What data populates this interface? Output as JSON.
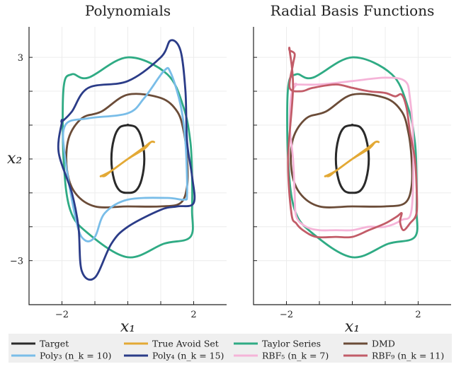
{
  "chart_data": [
    {
      "type": "line",
      "title": "Polynomials",
      "xlabel": "x₁",
      "ylabel": "x₂",
      "xlim": [
        -3,
        3
      ],
      "ylim": [
        -4.3,
        3.9
      ],
      "xticks": [
        -2,
        2
      ],
      "yticks": [
        3,
        -3
      ],
      "grid": true,
      "series": [
        {
          "name": "Target",
          "key": "target",
          "x": [
            0,
            0.25,
            0.42,
            0.5,
            0.42,
            0.25,
            0,
            -0.25,
            -0.42,
            -0.5,
            -0.42,
            -0.25,
            0
          ],
          "y": [
            1,
            0.93,
            0.6,
            0,
            -0.6,
            -0.93,
            -1,
            -0.93,
            -0.6,
            0,
            0.6,
            0.93,
            1
          ]
        },
        {
          "name": "True Avoid Set",
          "key": "avoid",
          "x": [
            -0.8,
            -0.5,
            0,
            0.5,
            0.7,
            0.8,
            0.7,
            0.5,
            0,
            -0.5,
            -0.7,
            -0.8
          ],
          "y": [
            -0.5,
            -0.35,
            0,
            0.3,
            0.5,
            0.5,
            0.5,
            0.35,
            0,
            -0.35,
            -0.5,
            -0.5
          ]
        },
        {
          "name": "Taylor Series",
          "key": "taylor",
          "x": [
            -1.2,
            0,
            1.2,
            1.7,
            1.9,
            1.95,
            1.95,
            1.9,
            1.1,
            0,
            -1.2,
            -1.75,
            -1.95,
            -1.95,
            -1.7
          ],
          "y": [
            2.4,
            3.0,
            2.5,
            1.5,
            0.5,
            -0.5,
            -1.5,
            -2.3,
            -2.5,
            -2.9,
            -2.2,
            -1.5,
            0,
            2.1,
            2.5
          ]
        },
        {
          "name": "DMD",
          "key": "dmd",
          "x": [
            -0.8,
            0,
            1,
            1.5,
            1.7,
            1.8,
            1.8,
            1.6,
            1,
            0,
            -1,
            -1.6,
            -1.85,
            -1.8,
            -1.4
          ],
          "y": [
            1.4,
            1.9,
            1.8,
            1.4,
            0.8,
            0,
            -0.8,
            -1.3,
            -1.4,
            -1.4,
            -1.4,
            -1.0,
            -0.3,
            0.6,
            1.2
          ]
        },
        {
          "name": "Poly₃ (n_k = 10)",
          "key": "poly3",
          "x": [
            -1.9,
            -1.2,
            0,
            0.5,
            1.1,
            1.3,
            1.6,
            1.75,
            1.8,
            1.7,
            1.2,
            0,
            -0.7,
            -1.0,
            -1.3,
            -1.55,
            -1.9
          ],
          "y": [
            1.0,
            1.2,
            1.35,
            1.8,
            2.6,
            2.55,
            1.6,
            0.5,
            -1.0,
            -1.2,
            -1.15,
            -1.2,
            -1.6,
            -2.3,
            -2.4,
            -1.9,
            0
          ]
        },
        {
          "name": "Poly₄ (n_k = 15)",
          "key": "poly4",
          "x": [
            -2.0,
            -1.7,
            -1.2,
            0,
            1.0,
            1.3,
            1.6,
            1.75,
            1.8,
            1.95,
            2.0,
            1.5,
            1.0,
            0,
            -0.5,
            -1.0,
            -1.4,
            -1.5,
            -1.7,
            -2.1,
            -2.0
          ],
          "y": [
            1.1,
            1.4,
            2.1,
            2.3,
            3.0,
            3.5,
            3.2,
            2.0,
            0.5,
            -0.5,
            -1.3,
            -1.4,
            -1.5,
            -2.0,
            -2.5,
            -3.5,
            -3.3,
            -2.0,
            -1.0,
            0.2,
            1.1
          ]
        }
      ]
    },
    {
      "type": "line",
      "title": "Radial Basis Functions",
      "xlabel": "x₁",
      "xlim": [
        -3,
        3
      ],
      "ylim": [
        -4.3,
        3.9
      ],
      "xticks": [
        -2,
        2
      ],
      "yticks": [
        3,
        -3
      ],
      "grid": true,
      "series": [
        {
          "name": "Target",
          "key": "target",
          "x": [
            0,
            0.25,
            0.42,
            0.5,
            0.42,
            0.25,
            0,
            -0.25,
            -0.42,
            -0.5,
            -0.42,
            -0.25,
            0
          ],
          "y": [
            1,
            0.93,
            0.6,
            0,
            -0.6,
            -0.93,
            -1,
            -0.93,
            -0.6,
            0,
            0.6,
            0.93,
            1
          ]
        },
        {
          "name": "True Avoid Set",
          "key": "avoid",
          "x": [
            -0.8,
            -0.5,
            0,
            0.5,
            0.7,
            0.8,
            0.7,
            0.5,
            0,
            -0.5,
            -0.7,
            -0.8
          ],
          "y": [
            -0.5,
            -0.35,
            0,
            0.3,
            0.5,
            0.5,
            0.5,
            0.35,
            0,
            -0.35,
            -0.5,
            -0.5
          ]
        },
        {
          "name": "Taylor Series",
          "key": "taylor",
          "x": [
            -1.2,
            0,
            1.2,
            1.7,
            1.9,
            1.95,
            1.95,
            1.9,
            1.1,
            0,
            -1.2,
            -1.75,
            -1.95,
            -1.95,
            -1.7
          ],
          "y": [
            2.4,
            3.0,
            2.5,
            1.5,
            0.5,
            -0.5,
            -1.5,
            -2.3,
            -2.5,
            -2.9,
            -2.2,
            -1.5,
            0,
            2.1,
            2.5
          ]
        },
        {
          "name": "DMD",
          "key": "dmd",
          "x": [
            -0.8,
            0,
            1,
            1.5,
            1.7,
            1.8,
            1.8,
            1.6,
            1,
            0,
            -1,
            -1.6,
            -1.85,
            -1.8,
            -1.4
          ],
          "y": [
            1.4,
            1.9,
            1.8,
            1.4,
            0.8,
            0,
            -0.8,
            -1.3,
            -1.4,
            -1.4,
            -1.4,
            -1.0,
            -0.3,
            0.6,
            1.2
          ]
        },
        {
          "name": "RBF₅ (n_k = 7)",
          "key": "rbf5",
          "x": [
            -1.7,
            -1.0,
            0,
            1,
            1.6,
            1.75,
            1.85,
            1.8,
            1.5,
            1,
            0.5,
            0,
            -0.5,
            -1.0,
            -1.4,
            -1.7,
            -1.75,
            -1.8,
            -1.9,
            -1.85,
            -1.7
          ],
          "y": [
            2.2,
            2.2,
            2.3,
            2.4,
            2.3,
            1.8,
            0.5,
            -1.5,
            -1.8,
            -2.0,
            -2.0,
            -2.1,
            -2.1,
            -2.1,
            -2.0,
            -1.7,
            -1.0,
            0,
            1.0,
            1.9,
            2.2
          ]
        },
        {
          "name": "RBF₉ (n_k = 11)",
          "key": "rbf9",
          "x": [
            -1.9,
            -1.75,
            -1.8,
            -1.9,
            -1.55,
            -1.2,
            -0.5,
            0,
            0.5,
            1,
            1.3,
            1.5,
            1.65,
            1.75,
            1.9,
            1.95,
            1.95,
            1.75,
            1.55,
            1.45,
            1.5,
            1.35,
            1.0,
            0.5,
            0,
            -0.5,
            -1.1,
            -1.5,
            -1.7,
            -1.85,
            -1.95,
            -1.8,
            -1.9
          ],
          "y": [
            3.2,
            3.1,
            2.8,
            2.1,
            2.0,
            2.1,
            2.2,
            2.1,
            2.0,
            1.95,
            1.85,
            1.9,
            1.5,
            0.8,
            0,
            -0.8,
            -1.6,
            -1.9,
            -2.1,
            -1.85,
            -1.6,
            -1.7,
            -1.9,
            -2.1,
            -2.3,
            -2.3,
            -2.3,
            -2.1,
            -1.9,
            -1.6,
            0,
            2.1,
            3.2
          ]
        }
      ]
    }
  ],
  "legend": {
    "placement": "bottom",
    "entries": [
      {
        "key": "target",
        "label": "Target",
        "color": "#2a2a2a"
      },
      {
        "key": "avoid",
        "label": "True Avoid Set",
        "color": "#e3a935"
      },
      {
        "key": "taylor",
        "label": "Taylor Series",
        "color": "#2fab84"
      },
      {
        "key": "dmd",
        "label": "DMD",
        "color": "#6b4c38"
      },
      {
        "key": "poly3",
        "label": "Poly₃ (n_k = 10)",
        "color": "#79bde8"
      },
      {
        "key": "poly4",
        "label": "Poly₄ (n_k = 15)",
        "color": "#2b3c88"
      },
      {
        "key": "rbf5",
        "label": "RBF₅ (n_k = 7)",
        "color": "#f5b4d8"
      },
      {
        "key": "rbf9",
        "label": "RBF₉ (n_k = 11)",
        "color": "#c25c68"
      }
    ]
  }
}
